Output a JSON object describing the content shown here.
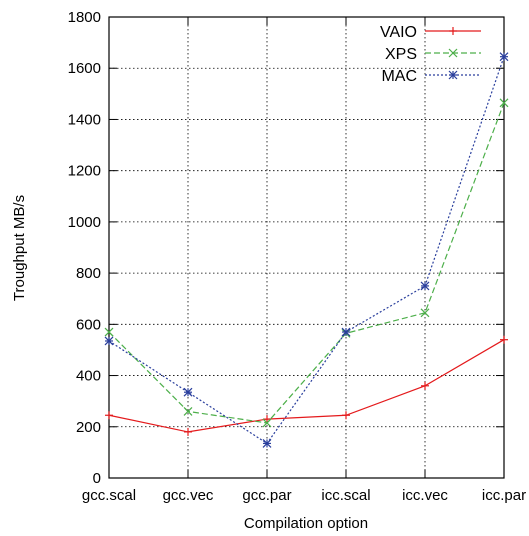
{
  "chart_data": {
    "type": "line",
    "xlabel": "Compilation option",
    "ylabel": "Troughput MB/s",
    "categories": [
      "gcc.scal",
      "gcc.vec",
      "gcc.par",
      "icc.scal",
      "icc.vec",
      "icc.par"
    ],
    "ylim": [
      0,
      1800
    ],
    "yticks": [
      0,
      200,
      400,
      600,
      800,
      1000,
      1200,
      1400,
      1600,
      1800
    ],
    "grid": true,
    "legend_position": "top-right",
    "series": [
      {
        "name": "VAIO",
        "color": "#e41a1c",
        "marker": "plus",
        "dash": "solid",
        "values": [
          245,
          180,
          230,
          245,
          360,
          540
        ]
      },
      {
        "name": "XPS",
        "color": "#4daf4a",
        "marker": "cross",
        "dash": "dashed",
        "values": [
          570,
          260,
          215,
          565,
          645,
          1465
        ]
      },
      {
        "name": "MAC",
        "color": "#2a3f9d",
        "marker": "star",
        "dash": "dotted",
        "values": [
          535,
          335,
          135,
          570,
          750,
          1645
        ]
      }
    ]
  }
}
